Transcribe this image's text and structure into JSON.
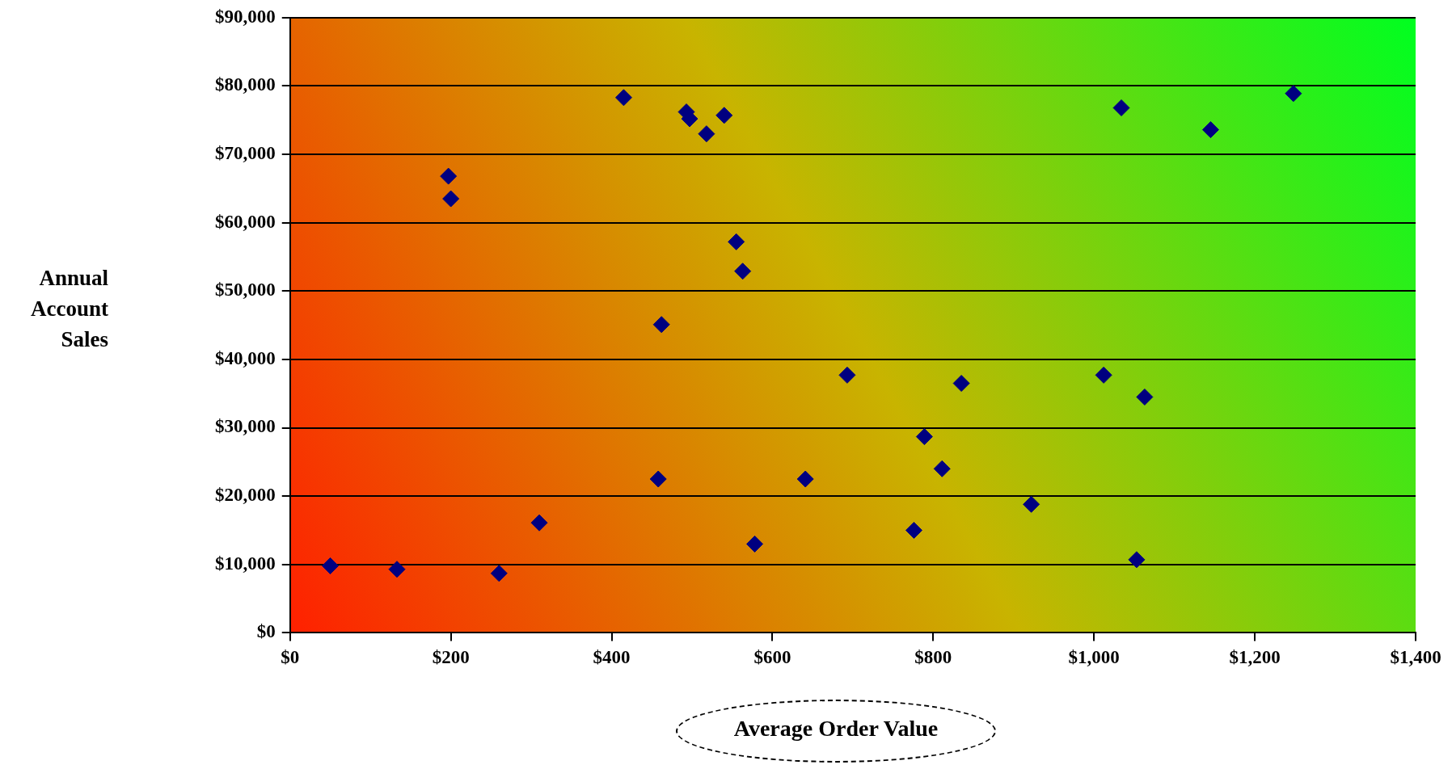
{
  "chart_data": {
    "type": "scatter",
    "xlabel": "Average Order Value",
    "ylabel": "Annual Account Sales",
    "x": [
      50,
      133,
      260,
      310,
      415,
      197,
      200,
      493,
      497,
      518,
      540,
      555,
      563,
      462,
      458,
      578,
      641,
      693,
      789,
      811,
      835,
      776,
      922,
      1012,
      1063,
      1053,
      1034,
      1145,
      1248
    ],
    "series": [
      {
        "color": "#000080",
        "values": [
          9800,
          9300,
          8700,
          16100,
          78300,
          66800,
          63500,
          76200,
          75200,
          73000,
          75700,
          57200,
          52900,
          45100,
          22500,
          13000,
          22500,
          37700,
          28700,
          24000,
          36500,
          15000,
          18800,
          37700,
          34500,
          10700,
          76800,
          73600,
          78900
        ]
      }
    ],
    "xlim": [
      0,
      1400
    ],
    "ylim": [
      0,
      90000
    ],
    "xticks": [
      {
        "value": 0,
        "label": "$0"
      },
      {
        "value": 200,
        "label": "$200"
      },
      {
        "value": 400,
        "label": "$400"
      },
      {
        "value": 600,
        "label": "$600"
      },
      {
        "value": 800,
        "label": "$800"
      },
      {
        "value": 1000,
        "label": "$1,000"
      },
      {
        "value": 1200,
        "label": "$1,200"
      },
      {
        "value": 1400,
        "label": "$1,400"
      }
    ],
    "yticks": [
      {
        "value": 0,
        "label": "$0"
      },
      {
        "value": 10000,
        "label": "$10,000"
      },
      {
        "value": 20000,
        "label": "$20,000"
      },
      {
        "value": 30000,
        "label": "$30,000"
      },
      {
        "value": 40000,
        "label": "$40,000"
      },
      {
        "value": 50000,
        "label": "$50,000"
      },
      {
        "value": 60000,
        "label": "$60,000"
      },
      {
        "value": 70000,
        "label": "$70,000"
      },
      {
        "value": 80000,
        "label": "$80,000"
      },
      {
        "value": 90000,
        "label": "$90,000"
      }
    ],
    "grid": "y",
    "legend": false,
    "marker": "diamond"
  }
}
